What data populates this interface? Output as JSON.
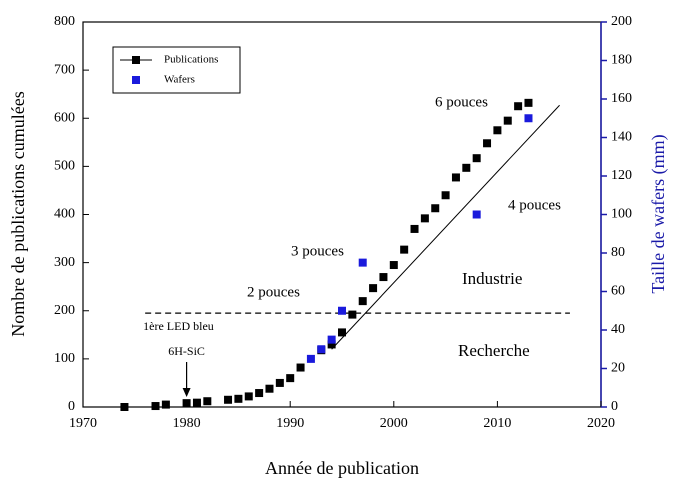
{
  "chart_data": {
    "type": "scatter",
    "xlabel": "Année de publication",
    "ylabel": "Nombre de publications cumulées",
    "y2label": "Taille de wafers (mm)",
    "xlim": [
      1970,
      2020
    ],
    "xticks": [
      1970,
      1980,
      1990,
      2000,
      2010,
      2020
    ],
    "ylim": [
      0,
      800
    ],
    "yticks": [
      0,
      100,
      200,
      300,
      400,
      500,
      600,
      700,
      800
    ],
    "y2lim": [
      0,
      200
    ],
    "y2ticks": [
      0,
      20,
      40,
      60,
      80,
      100,
      120,
      140,
      160,
      180,
      200
    ],
    "y2color": "#1a1aa8",
    "series": [
      {
        "name": "Publications",
        "color": "#000000",
        "x": [
          1974,
          1977,
          1978,
          1980,
          1981,
          1982,
          1984,
          1985,
          1986,
          1987,
          1988,
          1989,
          1990,
          1991,
          1993,
          1994,
          1995,
          1996,
          1997,
          1998,
          1999,
          2000,
          2001,
          2002,
          2003,
          2004,
          2005,
          2006,
          2007,
          2008,
          2009,
          2010,
          2011,
          2012,
          2013
        ],
        "values": [
          0,
          2,
          5,
          8,
          9,
          12,
          15,
          17,
          22,
          29,
          38,
          50,
          60,
          82,
          118,
          130,
          155,
          192,
          220,
          247,
          270,
          295,
          327,
          370,
          392,
          413,
          440,
          477,
          497,
          517,
          548,
          575,
          595,
          625,
          632
        ]
      },
      {
        "name": "Wafers",
        "color": "#1a1adc",
        "axis": "y2",
        "x": [
          1992,
          1993,
          1994,
          1995,
          1997,
          2008,
          2013
        ],
        "values": [
          25,
          30,
          35,
          50,
          75,
          100,
          150
        ]
      }
    ],
    "fit": {
      "x": [
        1994,
        2016
      ],
      "values": [
        120,
        627
      ]
    },
    "threshold": {
      "value": 195,
      "x": [
        1976,
        2017
      ],
      "label": "1ère LED bleu"
    },
    "arrow": {
      "x": 1980,
      "label": "6H-SiC"
    },
    "annotations": [
      "2 pouces",
      "3 pouces",
      "4 pouces",
      "6 pouces",
      "Industrie",
      "Recherche"
    ]
  }
}
